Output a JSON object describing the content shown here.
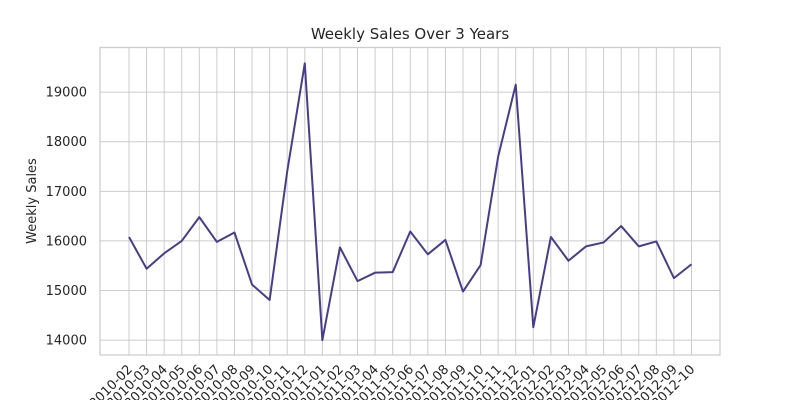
{
  "chart_data": {
    "type": "line",
    "title": "Weekly Sales Over 3 Years",
    "xlabel": "",
    "ylabel": "Weekly Sales",
    "x": [
      "2010-02",
      "2010-03",
      "2010-04",
      "2010-05",
      "2010-06",
      "2010-07",
      "2010-08",
      "2010-09",
      "2010-10",
      "2010-11",
      "2010-12",
      "2011-01",
      "2011-02",
      "2011-03",
      "2011-04",
      "2011-05",
      "2011-06",
      "2011-07",
      "2011-08",
      "2011-09",
      "2011-10",
      "2011-11",
      "2011-12",
      "2012-01",
      "2012-02",
      "2012-03",
      "2012-04",
      "2012-05",
      "2012-06",
      "2012-07",
      "2012-08",
      "2012-09",
      "2012-10"
    ],
    "tick_labels": [
      "2010-02",
      "2010-03",
      "2010-04",
      "2010-05",
      "2010-06",
      "2010-07",
      "2010-08",
      "2010-09",
      "2010-10",
      "2010-11",
      "2010-12",
      "2011-01",
      "2011-02",
      "2011-03",
      "2011-04",
      "2011-05",
      "2011-06",
      "2011-07",
      "2011-08",
      "2011-09",
      "2011-10",
      "2011-11",
      "2011-12",
      "2012-01",
      "2012-02",
      "2012-03",
      "2012-04",
      "2012-05",
      "2012-06",
      "2012-07",
      "2012-08",
      "2012-09",
      "2012-10"
    ],
    "series": [
      {
        "values": [
          16080,
          15440,
          15750,
          16000,
          16480,
          15980,
          16170,
          15120,
          14810,
          17400,
          19580,
          14000,
          15870,
          15190,
          15360,
          15370,
          16190,
          15730,
          16020,
          14980,
          15510,
          17700,
          19150,
          14260,
          16080,
          15600,
          15890,
          15970,
          16300,
          15890,
          15990,
          15250,
          15530
        ]
      }
    ],
    "yticks": [
      14000,
      15000,
      16000,
      17000,
      18000,
      19000
    ],
    "ylim": [
      13700,
      19900
    ],
    "grid": true,
    "legend": "none",
    "line_color": "#483d8b"
  }
}
